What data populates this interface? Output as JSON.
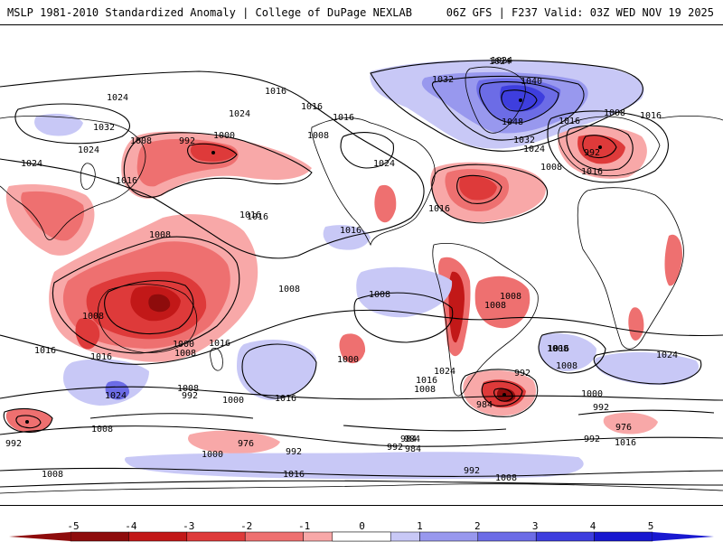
{
  "header": {
    "left": "MSLP 1981-2010 Standardized Anomaly | College of DuPage NEXLAB",
    "right": "06Z GFS | F237 Valid: 03Z WED NOV 19 2025"
  },
  "colors": {
    "neg5": "#8e0c0c",
    "neg4": "#c21818",
    "neg3": "#de3a3a",
    "neg2": "#ee7070",
    "neg1": "#f8a8a8",
    "pos1": "#c8c8f6",
    "pos2": "#9898ee",
    "pos3": "#6c6ce6",
    "pos4": "#3e3ede",
    "pos5": "#1818d0",
    "land": "#ffffff",
    "contour": "#000000"
  },
  "legend": {
    "ticks": [
      "-5",
      "-4",
      "-3",
      "-2",
      "-1",
      "0",
      "1",
      "2",
      "3",
      "4",
      "5"
    ]
  },
  "contour_labels": [
    "1024",
    "1016",
    "1016",
    "1024",
    "1032",
    "1024",
    "1008",
    "992",
    "1000",
    "1016",
    "1016",
    "1008",
    "1024",
    "1024",
    "1024",
    "1016",
    "1008",
    "1016",
    "1032",
    "1040",
    "1048",
    "1032",
    "1024",
    "1024",
    "1016",
    "1008",
    "1016",
    "992",
    "1016",
    "1016",
    "1016",
    "1008",
    "1008",
    "1008",
    "1008",
    "1008",
    "1008",
    "1000",
    "1008",
    "1016",
    "1016",
    "1016",
    "1008",
    "1024",
    "1016",
    "1016",
    "1008",
    "1000",
    "1008",
    "992",
    "984",
    "1000",
    "1008",
    "1024",
    "992",
    "1000",
    "992",
    "984",
    "976",
    "992",
    "1008",
    "1016",
    "1000",
    "976",
    "992",
    "1008",
    "984",
    "992",
    "984",
    "992",
    "1008",
    "1016",
    "992",
    "1016",
    "1024"
  ]
}
